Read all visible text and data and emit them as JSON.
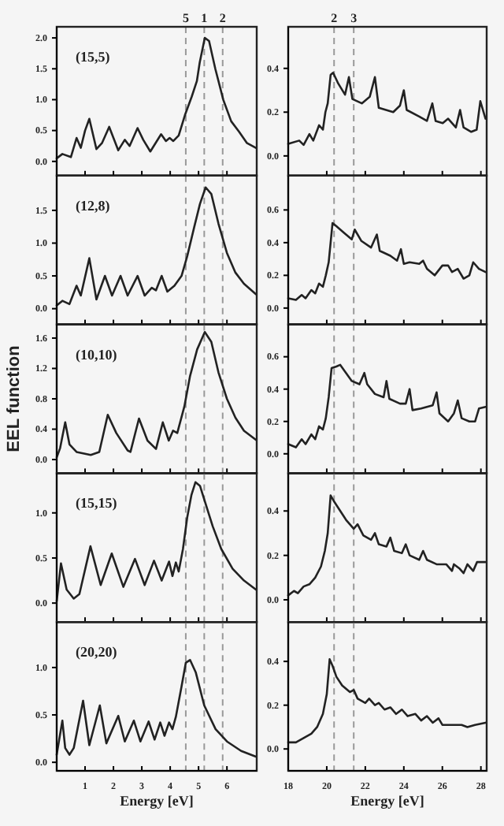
{
  "chart_data": [
    {
      "type": "line",
      "annotations": [
        "(15,5)",
        {
          "text": "5",
          "x": 4.55,
          "y": 2.18
        },
        {
          "text": "1",
          "x": 5.2,
          "y": 2.18
        },
        {
          "text": "2",
          "x": 5.85,
          "y": 2.18
        }
      ],
      "xlim": [
        0,
        7.05
      ],
      "ylim": [
        -0.23,
        2.18
      ],
      "xticks": [
        1,
        2,
        3,
        4,
        5,
        6
      ],
      "yticks": [
        {
          "value": 0,
          "label": "0.0"
        },
        0.5,
        {
          "value": 1,
          "label": "1.0"
        },
        1.5,
        {
          "value": 2,
          "label": "2.0"
        }
      ],
      "tick_labels": "y",
      "ref_lines": [
        {
          "axis": "x",
          "value": 4.55,
          "color": "#999999",
          "line_style": "dashed"
        },
        {
          "axis": "x",
          "value": 5.2,
          "color": "#999999",
          "line_style": "dashed"
        },
        {
          "axis": "x",
          "value": 5.85,
          "color": "#999999",
          "line_style": "dashed"
        }
      ],
      "series": [
        {
          "color": "#222222",
          "x": [
            0,
            0.2,
            0.5,
            0.7,
            0.85,
            1.0,
            1.15,
            1.4,
            1.6,
            1.85,
            2.17,
            2.4,
            2.57,
            2.85,
            3.05,
            3.3,
            3.68,
            3.85,
            3.98,
            4.11,
            4.3,
            4.52,
            4.76,
            4.94,
            5.04,
            5.22,
            5.37,
            5.59,
            5.87,
            6.15,
            6.43,
            6.7,
            7.02
          ],
          "values": [
            0.05,
            0.12,
            0.07,
            0.38,
            0.22,
            0.5,
            0.69,
            0.2,
            0.3,
            0.56,
            0.18,
            0.35,
            0.25,
            0.54,
            0.35,
            0.16,
            0.44,
            0.33,
            0.38,
            0.33,
            0.42,
            0.75,
            1.05,
            1.3,
            1.6,
            2.0,
            1.95,
            1.5,
            1.0,
            0.65,
            0.48,
            0.3,
            0.22
          ]
        }
      ]
    },
    {
      "type": "line",
      "annotations": [
        {
          "text": "2",
          "x": 20.38,
          "y": 0.59
        },
        {
          "text": "3",
          "x": 21.4,
          "y": 0.59
        }
      ],
      "xlim": [
        18,
        28.3
      ],
      "ylim": [
        -0.09,
        0.59
      ],
      "xticks": [
        18,
        20,
        22,
        24,
        26,
        28
      ],
      "yticks": [
        {
          "value": 0,
          "label": "0.0"
        },
        0.2,
        0.4
      ],
      "tick_labels": "y",
      "ref_lines": [
        {
          "axis": "x",
          "value": 20.38,
          "color": "#999999",
          "line_style": "dashed"
        },
        {
          "axis": "x",
          "value": 21.4,
          "color": "#999999",
          "line_style": "dashed"
        }
      ],
      "series": [
        {
          "color": "#222222",
          "x": [
            18,
            18.57,
            18.8,
            19.1,
            19.3,
            19.6,
            19.8,
            19.93,
            20.05,
            20.2,
            20.33,
            20.6,
            20.95,
            21.15,
            21.33,
            21.82,
            22.23,
            22.5,
            22.7,
            23.45,
            23.8,
            24.0,
            24.15,
            24.8,
            25.2,
            25.48,
            25.65,
            26.02,
            26.3,
            26.7,
            26.92,
            27.1,
            27.5,
            27.78,
            27.97,
            28.24
          ],
          "values": [
            0.055,
            0.07,
            0.05,
            0.1,
            0.07,
            0.14,
            0.12,
            0.2,
            0.24,
            0.37,
            0.38,
            0.33,
            0.28,
            0.36,
            0.26,
            0.24,
            0.27,
            0.36,
            0.22,
            0.2,
            0.23,
            0.3,
            0.21,
            0.18,
            0.16,
            0.24,
            0.16,
            0.15,
            0.17,
            0.13,
            0.21,
            0.13,
            0.11,
            0.12,
            0.25,
            0.17
          ]
        }
      ]
    },
    {
      "type": "line",
      "annotations": [
        "(12,8)"
      ],
      "xlim": [
        0,
        7.05
      ],
      "ylim": [
        -0.24,
        2.03
      ],
      "xticks": [
        1,
        2,
        3,
        4,
        5,
        6
      ],
      "yticks": [
        {
          "value": 0,
          "label": "0.0"
        },
        0.5,
        {
          "value": 1,
          "label": "1.0"
        },
        1.5
      ],
      "tick_labels": "y",
      "ref_lines": [
        {
          "axis": "x",
          "value": 4.55,
          "label": null,
          "color": "#999999",
          "line_style": "dashed"
        },
        {
          "axis": "x",
          "value": 5.2,
          "label": null,
          "color": "#999999",
          "line_style": "dashed"
        },
        {
          "axis": "x",
          "value": 5.85,
          "label": null,
          "color": "#999999",
          "line_style": "dashed"
        }
      ],
      "series": [
        {
          "color": "#222222",
          "x": [
            0,
            0.2,
            0.45,
            0.7,
            0.85,
            1.15,
            1.4,
            1.7,
            1.95,
            2.25,
            2.5,
            2.85,
            3.1,
            3.35,
            3.5,
            3.7,
            3.9,
            4.15,
            4.4,
            4.6,
            4.85,
            5.05,
            5.25,
            5.45,
            5.7,
            6.0,
            6.3,
            6.6,
            7.02
          ],
          "values": [
            0.05,
            0.12,
            0.07,
            0.35,
            0.2,
            0.77,
            0.14,
            0.5,
            0.2,
            0.5,
            0.2,
            0.5,
            0.2,
            0.32,
            0.28,
            0.5,
            0.26,
            0.35,
            0.5,
            0.8,
            1.25,
            1.6,
            1.85,
            1.75,
            1.3,
            0.85,
            0.55,
            0.38,
            0.22
          ]
        }
      ]
    },
    {
      "type": "line",
      "xlim": [
        18,
        28.3
      ],
      "ylim": [
        -0.1,
        0.81
      ],
      "xticks": [
        18,
        20,
        22,
        24,
        26,
        28
      ],
      "yticks": [
        {
          "value": 0,
          "label": "0.0"
        },
        0.2,
        0.4,
        0.6
      ],
      "tick_labels": "y",
      "ref_lines": [
        {
          "axis": "x",
          "value": 20.38,
          "label": null,
          "color": "#999999",
          "line_style": "dashed"
        },
        {
          "axis": "x",
          "value": 21.4,
          "label": null,
          "color": "#999999",
          "line_style": "dashed"
        }
      ],
      "series": [
        {
          "color": "#222222",
          "x": [
            18,
            18.4,
            18.7,
            18.9,
            19.2,
            19.4,
            19.6,
            19.8,
            19.95,
            20.1,
            20.3,
            20.5,
            20.9,
            21.3,
            21.45,
            21.8,
            22.3,
            22.6,
            22.75,
            23.3,
            23.65,
            23.85,
            24.0,
            24.3,
            24.8,
            25.0,
            25.2,
            25.6,
            26.0,
            26.3,
            26.5,
            26.8,
            27.1,
            27.4,
            27.6,
            27.9,
            28.24
          ],
          "values": [
            0.06,
            0.05,
            0.08,
            0.06,
            0.11,
            0.09,
            0.15,
            0.13,
            0.2,
            0.28,
            0.52,
            0.5,
            0.46,
            0.42,
            0.48,
            0.41,
            0.37,
            0.45,
            0.35,
            0.32,
            0.29,
            0.36,
            0.27,
            0.28,
            0.27,
            0.29,
            0.24,
            0.2,
            0.26,
            0.26,
            0.22,
            0.24,
            0.18,
            0.2,
            0.28,
            0.24,
            0.22
          ]
        }
      ]
    },
    {
      "type": "line",
      "annotations": [
        "(10,10)"
      ],
      "ylabel": "EEL function",
      "xlim": [
        0,
        7.05
      ],
      "ylim": [
        -0.18,
        1.78
      ],
      "xticks": [
        1,
        2,
        3,
        4,
        5,
        6
      ],
      "yticks": [
        {
          "value": 0,
          "label": "0.0"
        },
        0.4,
        0.8,
        1.2,
        1.6
      ],
      "tick_labels": "y",
      "ref_lines": [
        {
          "axis": "x",
          "value": 4.55,
          "label": null,
          "color": "#999999",
          "line_style": "dashed"
        },
        {
          "axis": "x",
          "value": 5.2,
          "label": null,
          "color": "#999999",
          "line_style": "dashed"
        },
        {
          "axis": "x",
          "value": 5.85,
          "label": null,
          "color": "#999999",
          "line_style": "dashed"
        }
      ],
      "series": [
        {
          "color": "#222222",
          "x": [
            0,
            0.12,
            0.3,
            0.45,
            0.7,
            1.2,
            1.5,
            1.8,
            2.1,
            2.5,
            2.6,
            2.9,
            3.2,
            3.5,
            3.74,
            3.95,
            4.1,
            4.25,
            4.5,
            4.7,
            4.95,
            5.22,
            5.45,
            5.7,
            6.0,
            6.3,
            6.6,
            7.02
          ],
          "values": [
            0.03,
            0.15,
            0.49,
            0.2,
            0.1,
            0.06,
            0.1,
            0.59,
            0.35,
            0.12,
            0.1,
            0.54,
            0.25,
            0.14,
            0.49,
            0.25,
            0.38,
            0.35,
            0.7,
            1.1,
            1.45,
            1.68,
            1.55,
            1.15,
            0.8,
            0.55,
            0.38,
            0.26
          ]
        }
      ]
    },
    {
      "type": "line",
      "xlim": [
        18,
        28.3
      ],
      "ylim": [
        -0.12,
        0.8
      ],
      "xticks": [
        18,
        20,
        22,
        24,
        26,
        28
      ],
      "yticks": [
        {
          "value": 0,
          "label": "0.0"
        },
        0.2,
        0.4,
        0.6
      ],
      "tick_labels": "y",
      "ref_lines": [
        {
          "axis": "x",
          "value": 20.38,
          "label": null,
          "color": "#999999",
          "line_style": "dashed"
        },
        {
          "axis": "x",
          "value": 21.4,
          "label": null,
          "color": "#999999",
          "line_style": "dashed"
        }
      ],
      "series": [
        {
          "color": "#222222",
          "x": [
            18,
            18.4,
            18.7,
            18.9,
            19.2,
            19.4,
            19.6,
            19.8,
            19.95,
            20.1,
            20.25,
            20.5,
            20.7,
            21.0,
            21.3,
            21.7,
            21.95,
            22.1,
            22.5,
            22.95,
            23.1,
            23.25,
            23.8,
            24.1,
            24.3,
            24.45,
            24.9,
            25.5,
            25.7,
            25.85,
            26.3,
            26.6,
            26.8,
            27.0,
            27.4,
            27.7,
            27.9,
            28.24
          ],
          "values": [
            0.06,
            0.04,
            0.09,
            0.06,
            0.12,
            0.09,
            0.17,
            0.15,
            0.22,
            0.35,
            0.53,
            0.54,
            0.55,
            0.5,
            0.45,
            0.43,
            0.5,
            0.43,
            0.37,
            0.35,
            0.45,
            0.34,
            0.31,
            0.31,
            0.4,
            0.27,
            0.28,
            0.3,
            0.38,
            0.25,
            0.2,
            0.25,
            0.33,
            0.22,
            0.2,
            0.2,
            0.28,
            0.29
          ]
        }
      ]
    },
    {
      "type": "line",
      "annotations": [
        "(15,15)"
      ],
      "xlim": [
        0,
        7.05
      ],
      "ylim": [
        -0.21,
        1.44
      ],
      "xticks": [
        1,
        2,
        3,
        4,
        5,
        6
      ],
      "yticks": [
        {
          "value": 0,
          "label": "0.0"
        },
        0.5,
        {
          "value": 1,
          "label": "1.0"
        }
      ],
      "tick_labels": "y",
      "ref_lines": [
        {
          "axis": "x",
          "value": 4.55,
          "label": null,
          "color": "#999999",
          "line_style": "dashed"
        },
        {
          "axis": "x",
          "value": 5.2,
          "label": null,
          "color": "#999999",
          "line_style": "dashed"
        },
        {
          "axis": "x",
          "value": 5.85,
          "label": null,
          "color": "#999999",
          "line_style": "dashed"
        }
      ],
      "series": [
        {
          "color": "#222222",
          "x": [
            0,
            0.15,
            0.35,
            0.6,
            0.8,
            1.19,
            1.55,
            1.94,
            2.35,
            2.76,
            3.1,
            3.43,
            3.7,
            3.96,
            4.08,
            4.2,
            4.3,
            4.45,
            4.6,
            4.75,
            4.89,
            5.05,
            5.2,
            5.5,
            5.8,
            6.2,
            6.6,
            7.02
          ],
          "values": [
            0.02,
            0.44,
            0.15,
            0.05,
            0.1,
            0.63,
            0.2,
            0.55,
            0.18,
            0.49,
            0.2,
            0.47,
            0.25,
            0.46,
            0.3,
            0.45,
            0.35,
            0.6,
            0.95,
            1.2,
            1.34,
            1.3,
            1.15,
            0.85,
            0.6,
            0.38,
            0.25,
            0.15
          ]
        }
      ]
    },
    {
      "type": "line",
      "xlim": [
        18,
        28.3
      ],
      "ylim": [
        -0.1,
        0.57
      ],
      "xticks": [
        18,
        20,
        22,
        24,
        26,
        28
      ],
      "yticks": [
        {
          "value": 0,
          "label": "0.0"
        },
        0.2,
        0.4
      ],
      "tick_labels": "y",
      "ref_lines": [
        {
          "axis": "x",
          "value": 20.38,
          "label": null,
          "color": "#999999",
          "line_style": "dashed"
        },
        {
          "axis": "x",
          "value": 21.4,
          "label": null,
          "color": "#999999",
          "line_style": "dashed"
        }
      ],
      "series": [
        {
          "color": "#222222",
          "x": [
            18,
            18.3,
            18.5,
            18.8,
            19.1,
            19.4,
            19.7,
            19.9,
            20.05,
            20.2,
            20.4,
            20.7,
            21.0,
            21.4,
            21.6,
            21.9,
            22.3,
            22.5,
            22.7,
            23.1,
            23.3,
            23.5,
            23.9,
            24.1,
            24.3,
            24.8,
            25.0,
            25.2,
            25.7,
            26.2,
            26.5,
            26.6,
            26.9,
            27.1,
            27.3,
            27.6,
            27.8,
            28.24
          ],
          "values": [
            0.02,
            0.04,
            0.03,
            0.06,
            0.07,
            0.1,
            0.15,
            0.22,
            0.3,
            0.47,
            0.44,
            0.4,
            0.36,
            0.32,
            0.34,
            0.29,
            0.27,
            0.3,
            0.25,
            0.24,
            0.28,
            0.22,
            0.21,
            0.25,
            0.2,
            0.18,
            0.22,
            0.18,
            0.16,
            0.16,
            0.13,
            0.16,
            0.14,
            0.12,
            0.16,
            0.13,
            0.17,
            0.17
          ]
        }
      ]
    },
    {
      "type": "line",
      "annotations": [
        "(20,20)"
      ],
      "xlabel": "Energy [eV]",
      "xlim": [
        0,
        7.05
      ],
      "ylim": [
        -0.09,
        1.48
      ],
      "xticks": [
        1,
        2,
        3,
        4,
        5,
        6
      ],
      "yticks": [
        {
          "value": 0,
          "label": "0.0"
        },
        0.5,
        {
          "value": 1,
          "label": "1.0"
        }
      ],
      "ref_lines": [
        {
          "axis": "x",
          "value": 4.55,
          "label": null,
          "color": "#999999",
          "line_style": "dashed"
        },
        {
          "axis": "x",
          "value": 5.2,
          "label": null,
          "color": "#999999",
          "line_style": "dashed"
        },
        {
          "axis": "x",
          "value": 5.85,
          "label": null,
          "color": "#999999",
          "line_style": "dashed"
        }
      ],
      "series": [
        {
          "color": "#222222",
          "x": [
            0,
            0.2,
            0.3,
            0.45,
            0.6,
            0.93,
            1.15,
            1.52,
            1.75,
            2.17,
            2.4,
            2.72,
            2.95,
            3.24,
            3.45,
            3.65,
            3.8,
            3.96,
            4.08,
            4.2,
            4.4,
            4.55,
            4.7,
            4.9,
            5.2,
            5.6,
            6.0,
            6.5,
            7.02
          ],
          "values": [
            0.08,
            0.44,
            0.15,
            0.08,
            0.15,
            0.65,
            0.18,
            0.6,
            0.2,
            0.49,
            0.22,
            0.44,
            0.22,
            0.43,
            0.24,
            0.42,
            0.28,
            0.42,
            0.35,
            0.48,
            0.8,
            1.05,
            1.08,
            0.95,
            0.6,
            0.35,
            0.22,
            0.12,
            0.06
          ]
        }
      ]
    },
    {
      "type": "line",
      "xlabel": "Energy [eV]",
      "xlim": [
        18,
        28.3
      ],
      "ylim": [
        -0.1,
        0.58
      ],
      "xticks": [
        18,
        20,
        22,
        24,
        26,
        28
      ],
      "yticks": [
        {
          "value": 0,
          "label": "0.0"
        },
        0.2,
        0.4
      ],
      "ref_lines": [
        {
          "axis": "x",
          "value": 20.38,
          "label": null,
          "color": "#999999",
          "line_style": "dashed"
        },
        {
          "axis": "x",
          "value": 21.4,
          "label": null,
          "color": "#999999",
          "line_style": "dashed"
        }
      ],
      "series": [
        {
          "color": "#222222",
          "x": [
            18,
            18.4,
            18.8,
            19.2,
            19.5,
            19.8,
            20.0,
            20.15,
            20.3,
            20.5,
            20.8,
            21.2,
            21.4,
            21.6,
            22.0,
            22.2,
            22.5,
            22.7,
            23.0,
            23.3,
            23.6,
            23.9,
            24.2,
            24.6,
            24.9,
            25.2,
            25.5,
            25.8,
            26.0,
            26.5,
            27.0,
            27.3,
            27.7,
            28.24
          ],
          "values": [
            0.03,
            0.03,
            0.05,
            0.07,
            0.1,
            0.16,
            0.25,
            0.41,
            0.38,
            0.33,
            0.29,
            0.26,
            0.27,
            0.23,
            0.21,
            0.23,
            0.2,
            0.21,
            0.18,
            0.19,
            0.16,
            0.18,
            0.15,
            0.16,
            0.13,
            0.15,
            0.12,
            0.14,
            0.11,
            0.11,
            0.11,
            0.1,
            0.11,
            0.12
          ]
        }
      ]
    }
  ]
}
